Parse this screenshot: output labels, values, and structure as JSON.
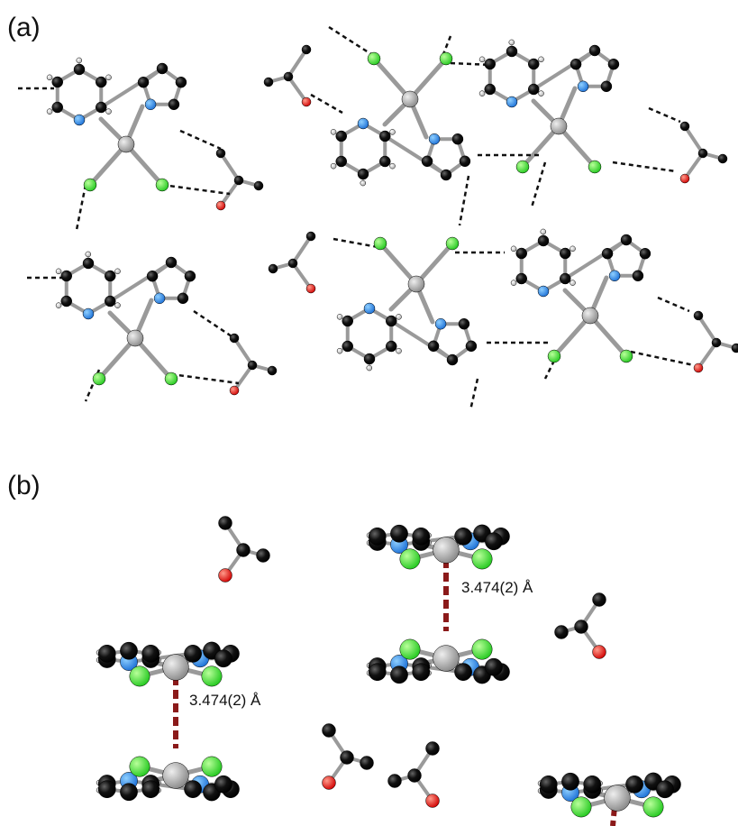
{
  "panels": [
    {
      "label": "(a)"
    },
    {
      "label": "(b)",
      "annotations": [
        "3.474(2) Å",
        "3.474(2) Å"
      ]
    }
  ]
}
